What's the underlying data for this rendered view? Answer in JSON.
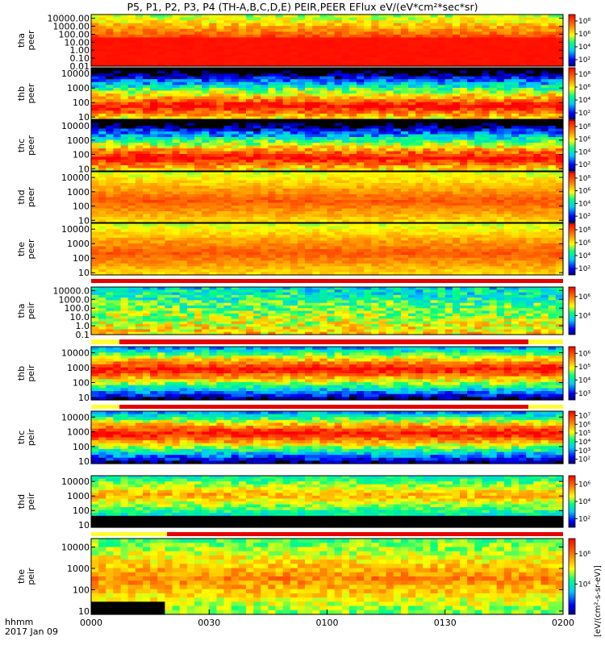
{
  "header": {
    "title": "P5, P1, P2, P3, P4 (TH-A,B,C,D,E) PEIR,PEER EFlux eV/(eV*cm²*sec*sr)"
  },
  "footer": {
    "x_label": "hhmm",
    "date_label": "2017 Jan 09"
  },
  "colorbar_side_label": "[eV/(cm²-s-sr-eV)]",
  "colors": {
    "frame": "#000000",
    "background": "#ffffff",
    "flag_red": "#e60000",
    "flag_yellow": "#ffff33"
  },
  "chart_data": {
    "type": "heatmap",
    "x": {
      "tick_labels": [
        "0000",
        "0030",
        "0100",
        "0130",
        "0200"
      ],
      "range": [
        "00:00",
        "02:00"
      ]
    },
    "panels": [
      {
        "id": "tha-peer",
        "probe": "tha",
        "species": "peer",
        "ylim": [
          0.01,
          30000
        ],
        "yscale": "log",
        "y_ticks": [
          {
            "v": 10000,
            "label": "10000.00"
          },
          {
            "v": 1000,
            "label": "1000.00"
          },
          {
            "v": 100,
            "label": "100.00"
          },
          {
            "v": 10,
            "label": "10.00"
          },
          {
            "v": 1,
            "label": "1.00"
          },
          {
            "v": 0.1,
            "label": "0.10"
          },
          {
            "v": 0.01,
            "label": "0.01"
          }
        ],
        "cb_ticks": [
          {
            "e": 8,
            "label": "10⁸"
          },
          {
            "e": 6,
            "label": "10⁶"
          },
          {
            "e": 4,
            "label": "10⁴"
          },
          {
            "e": 2,
            "label": "10²"
          }
        ],
        "cb_range": [
          1,
          9
        ]
      },
      {
        "id": "thb-peer",
        "probe": "thb",
        "species": "peer",
        "ylim": [
          7,
          25000
        ],
        "yscale": "log",
        "y_ticks": [
          {
            "v": 10000,
            "label": "10000"
          },
          {
            "v": 1000,
            "label": "1000"
          },
          {
            "v": 100,
            "label": "100"
          },
          {
            "v": 10,
            "label": "10"
          }
        ],
        "cb_ticks": [
          {
            "e": 8,
            "label": "10⁸"
          },
          {
            "e": 6,
            "label": "10⁶"
          },
          {
            "e": 4,
            "label": "10⁴"
          },
          {
            "e": 2,
            "label": "10²"
          }
        ],
        "cb_range": [
          1,
          9
        ]
      },
      {
        "id": "thc-peer",
        "probe": "thc",
        "species": "peer",
        "ylim": [
          7,
          25000
        ],
        "yscale": "log",
        "y_ticks": [
          {
            "v": 10000,
            "label": "10000"
          },
          {
            "v": 1000,
            "label": "1000"
          },
          {
            "v": 100,
            "label": "100"
          },
          {
            "v": 10,
            "label": "10"
          }
        ],
        "cb_ticks": [
          {
            "e": 8,
            "label": "10⁸"
          },
          {
            "e": 6,
            "label": "10⁶"
          },
          {
            "e": 4,
            "label": "10⁴"
          },
          {
            "e": 2,
            "label": "10²"
          }
        ],
        "cb_range": [
          1,
          9
        ]
      },
      {
        "id": "thd-peer",
        "probe": "thd",
        "species": "peer",
        "ylim": [
          7,
          25000
        ],
        "yscale": "log",
        "y_ticks": [
          {
            "v": 10000,
            "label": "10000"
          },
          {
            "v": 1000,
            "label": "1000"
          },
          {
            "v": 100,
            "label": "100"
          },
          {
            "v": 10,
            "label": "10"
          }
        ],
        "cb_ticks": [
          {
            "e": 8,
            "label": "10⁸"
          },
          {
            "e": 6,
            "label": "10⁶"
          },
          {
            "e": 4,
            "label": "10⁴"
          },
          {
            "e": 2,
            "label": "10²"
          }
        ],
        "cb_range": [
          1,
          9
        ]
      },
      {
        "id": "the-peer",
        "probe": "the",
        "species": "peer",
        "ylim": [
          7,
          25000
        ],
        "yscale": "log",
        "y_ticks": [
          {
            "v": 10000,
            "label": "10000"
          },
          {
            "v": 1000,
            "label": "1000"
          },
          {
            "v": 100,
            "label": "100"
          },
          {
            "v": 10,
            "label": "10"
          }
        ],
        "cb_ticks": [
          {
            "e": 8,
            "label": "10⁸"
          },
          {
            "e": 6,
            "label": "10⁶"
          },
          {
            "e": 4,
            "label": "10⁴"
          },
          {
            "e": 2,
            "label": "10²"
          }
        ],
        "cb_range": [
          1,
          9
        ]
      },
      {
        "id": "tha-peir",
        "probe": "tha",
        "species": "peir",
        "ylim": [
          0.1,
          25000
        ],
        "yscale": "log",
        "y_ticks": [
          {
            "v": 10000,
            "label": "10000.0"
          },
          {
            "v": 1000,
            "label": "1000.0"
          },
          {
            "v": 100,
            "label": "100.0"
          },
          {
            "v": 10,
            "label": "10.0"
          },
          {
            "v": 1,
            "label": "1.0"
          },
          {
            "v": 0.1,
            "label": "0.1"
          }
        ],
        "cb_ticks": [
          {
            "e": 6,
            "label": "10⁶"
          },
          {
            "e": 4,
            "label": "10⁴"
          }
        ],
        "cb_range": [
          2,
          7
        ]
      },
      {
        "id": "thb-peir",
        "probe": "thb",
        "species": "peir",
        "ylim": [
          7,
          25000
        ],
        "yscale": "log",
        "y_ticks": [
          {
            "v": 10000,
            "label": "10000"
          },
          {
            "v": 1000,
            "label": "1000"
          },
          {
            "v": 100,
            "label": "100"
          },
          {
            "v": 10,
            "label": "10"
          }
        ],
        "cb_ticks": [
          {
            "e": 6,
            "label": "10⁶"
          },
          {
            "e": 5,
            "label": "10⁵"
          },
          {
            "e": 4,
            "label": "10⁴"
          },
          {
            "e": 3,
            "label": "10³"
          }
        ],
        "cb_range": [
          2.5,
          6.5
        ]
      },
      {
        "id": "thc-peir",
        "probe": "thc",
        "species": "peir",
        "ylim": [
          7,
          25000
        ],
        "yscale": "log",
        "y_ticks": [
          {
            "v": 10000,
            "label": "10000"
          },
          {
            "v": 1000,
            "label": "1000"
          },
          {
            "v": 100,
            "label": "100"
          },
          {
            "v": 10,
            "label": "10"
          }
        ],
        "cb_ticks": [
          {
            "e": 7,
            "label": "10⁷"
          },
          {
            "e": 6,
            "label": "10⁶"
          },
          {
            "e": 5,
            "label": "10⁵"
          },
          {
            "e": 4,
            "label": "10⁴"
          },
          {
            "e": 3,
            "label": "10³"
          },
          {
            "e": 2,
            "label": "10²"
          }
        ],
        "cb_range": [
          1.5,
          7.5
        ]
      },
      {
        "id": "thd-peir",
        "probe": "thd",
        "species": "peir",
        "ylim": [
          7,
          25000
        ],
        "yscale": "log",
        "y_ticks": [
          {
            "v": 10000,
            "label": "10000"
          },
          {
            "v": 1000,
            "label": "1000"
          },
          {
            "v": 100,
            "label": "100"
          },
          {
            "v": 10,
            "label": "10"
          }
        ],
        "cb_ticks": [
          {
            "e": 6,
            "label": "10⁶"
          },
          {
            "e": 4,
            "label": "10⁴"
          },
          {
            "e": 2,
            "label": "10²"
          }
        ],
        "cb_range": [
          1,
          7
        ]
      },
      {
        "id": "the-peir",
        "probe": "the",
        "species": "peir",
        "ylim": [
          7,
          25000
        ],
        "yscale": "log",
        "y_ticks": [
          {
            "v": 10000,
            "label": "10000"
          },
          {
            "v": 1000,
            "label": "1000"
          },
          {
            "v": 100,
            "label": "100"
          },
          {
            "v": 10,
            "label": "10"
          }
        ],
        "cb_ticks": [
          {
            "e": 6,
            "label": "10⁶"
          },
          {
            "e": 4,
            "label": "10⁴"
          }
        ],
        "cb_range": [
          2,
          7
        ]
      }
    ]
  }
}
